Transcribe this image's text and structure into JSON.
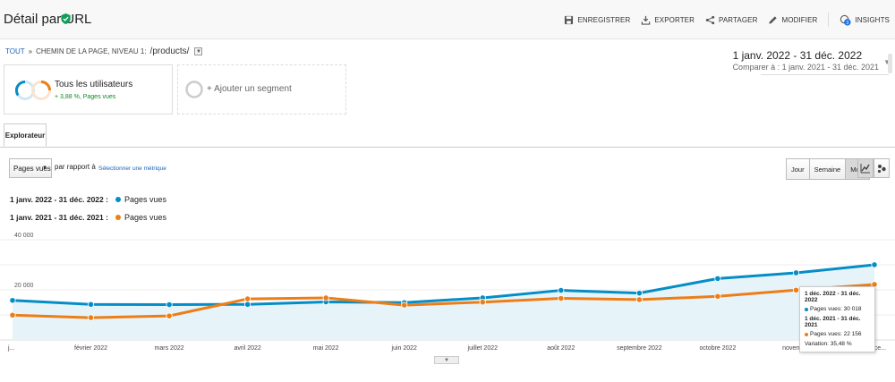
{
  "header": {
    "title": "Détail par URL",
    "toolbar": {
      "save": "ENREGISTRER",
      "export": "EXPORTER",
      "share": "PARTAGER",
      "edit": "MODIFIER",
      "insights": "INSIGHTS",
      "insights_count": "3"
    }
  },
  "breadcrumb": {
    "all": "TOUT",
    "separator": "»",
    "dimension": "CHEMIN DE LA PAGE, NIVEAU 1:",
    "path": "/products/"
  },
  "daterange": {
    "main": "1 janv. 2022 - 31 déc. 2022",
    "compare": "Comparer à : 1 janv. 2021 - 31 déc. 2021"
  },
  "segments": [
    {
      "label": "Tous les utilisateurs",
      "sub": "+ 3,88 %, Pages vues"
    },
    {
      "label": "+ Ajouter un segment"
    }
  ],
  "tabs": {
    "explorer": "Explorateur"
  },
  "controls": {
    "metric": "Pages vues",
    "par_rapport": "par rapport à",
    "select_metric": "Sélectionner une métrique",
    "periods": [
      "Jour",
      "Semaine",
      "Mois"
    ],
    "active_period": "Mois"
  },
  "legend": [
    {
      "range": "1 janv. 2022 - 31 déc. 2022 :",
      "metric": "Pages vues",
      "color": "#058dc7"
    },
    {
      "range": "1 janv. 2021 - 31 déc. 2021 :",
      "metric": "Pages vues",
      "color": "#ed7e17"
    }
  ],
  "chart_data": {
    "type": "line",
    "x": [
      "j...",
      "février 2022",
      "mars 2022",
      "avril 2022",
      "mai 2022",
      "juin 2022",
      "juillet 2022",
      "août 2022",
      "septembre 2022",
      "octobre 2022",
      "novemb...",
      "déce..."
    ],
    "y_ticks": [
      "20 000",
      "40 000"
    ],
    "ylim": [
      0,
      40000
    ],
    "series": [
      {
        "name": "1 janv. 2022 - 31 déc. 2022",
        "color": "#058dc7",
        "values": [
          15800,
          14200,
          14100,
          14200,
          15200,
          14900,
          16800,
          19800,
          18700,
          24500,
          26800,
          30018
        ]
      },
      {
        "name": "1 janv. 2021 - 31 déc. 2021",
        "color": "#ed7e17",
        "values": [
          9900,
          8900,
          9600,
          16400,
          16800,
          13900,
          15100,
          16600,
          16100,
          17400,
          19900,
          22156
        ]
      }
    ]
  },
  "tooltip": {
    "range1": "1 déc. 2022 - 31 déc. 2022",
    "value1": "Pages vues: 30 018",
    "range2": "1 déc. 2021 - 31 déc. 2021",
    "value2": "Pages vues: 22 156",
    "variation": "Variation: 35,48 %"
  }
}
